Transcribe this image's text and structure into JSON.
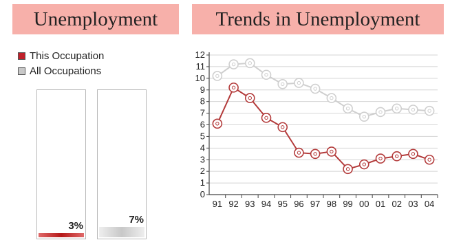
{
  "left_panel": {
    "title": "Unemployment",
    "legend": [
      {
        "label": "This Occupation",
        "color": "#c0202a"
      },
      {
        "label": "All Occupations",
        "color": "#c8c8c8"
      }
    ],
    "bars": [
      {
        "label": "3%",
        "value": 3
      },
      {
        "label": "7%",
        "value": 7
      }
    ]
  },
  "right_panel": {
    "title": "Trends in Unemployment"
  },
  "chart_data": {
    "type": "line",
    "categories": [
      "91",
      "92",
      "93",
      "94",
      "95",
      "96",
      "97",
      "98",
      "99",
      "00",
      "01",
      "02",
      "03",
      "04"
    ],
    "series": [
      {
        "name": "This Occupation",
        "color": "#b33a3a",
        "values": [
          6.1,
          9.2,
          8.3,
          6.6,
          5.8,
          3.6,
          3.5,
          3.7,
          2.2,
          2.6,
          3.1,
          3.3,
          3.5,
          3.0
        ]
      },
      {
        "name": "All Occupations",
        "color": "#cfcfcf",
        "values": [
          10.2,
          11.2,
          11.3,
          10.3,
          9.5,
          9.6,
          9.1,
          8.3,
          7.4,
          6.7,
          7.1,
          7.4,
          7.3,
          7.2
        ]
      }
    ],
    "yticks": [
      "0",
      "1",
      "2",
      "3",
      "4",
      "5",
      "6",
      "7",
      "8",
      "9",
      "10",
      "11",
      "12"
    ],
    "ylim": [
      0,
      12
    ],
    "grid": true
  }
}
